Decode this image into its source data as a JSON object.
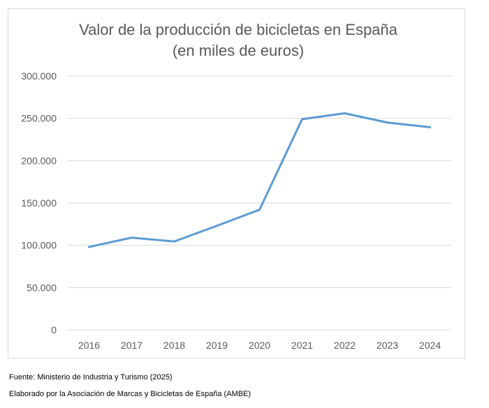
{
  "chart_data": {
    "type": "line",
    "title_lines": [
      "Valor de la producción de bicicletas en España",
      "(en miles de euros)"
    ],
    "xlabel": "",
    "ylabel": "",
    "categories": [
      "2016",
      "2017",
      "2018",
      "2019",
      "2020",
      "2021",
      "2022",
      "2023",
      "2024"
    ],
    "series": [
      {
        "values": [
          98000,
          109000,
          104500,
          123000,
          142000,
          249000,
          256000,
          245000,
          239500
        ]
      }
    ],
    "ylim": [
      0,
      300000
    ],
    "y_ticks": [
      {
        "value": 0,
        "label": "0"
      },
      {
        "value": 50000,
        "label": "50.000"
      },
      {
        "value": 100000,
        "label": "100.000"
      },
      {
        "value": 150000,
        "label": "150.000"
      },
      {
        "value": 200000,
        "label": "200.000"
      },
      {
        "value": 250000,
        "label": "250.000"
      },
      {
        "value": 300000,
        "label": "300.000"
      }
    ],
    "grid": true,
    "legend": "none",
    "line_color": "#5b9bd5"
  },
  "footer": {
    "source": "Fuente: Ministerio de Industria y Turismo (2025)",
    "credit": "Elaborado por la Asociación de Marcas y Bicicletas de España (AMBE)"
  }
}
